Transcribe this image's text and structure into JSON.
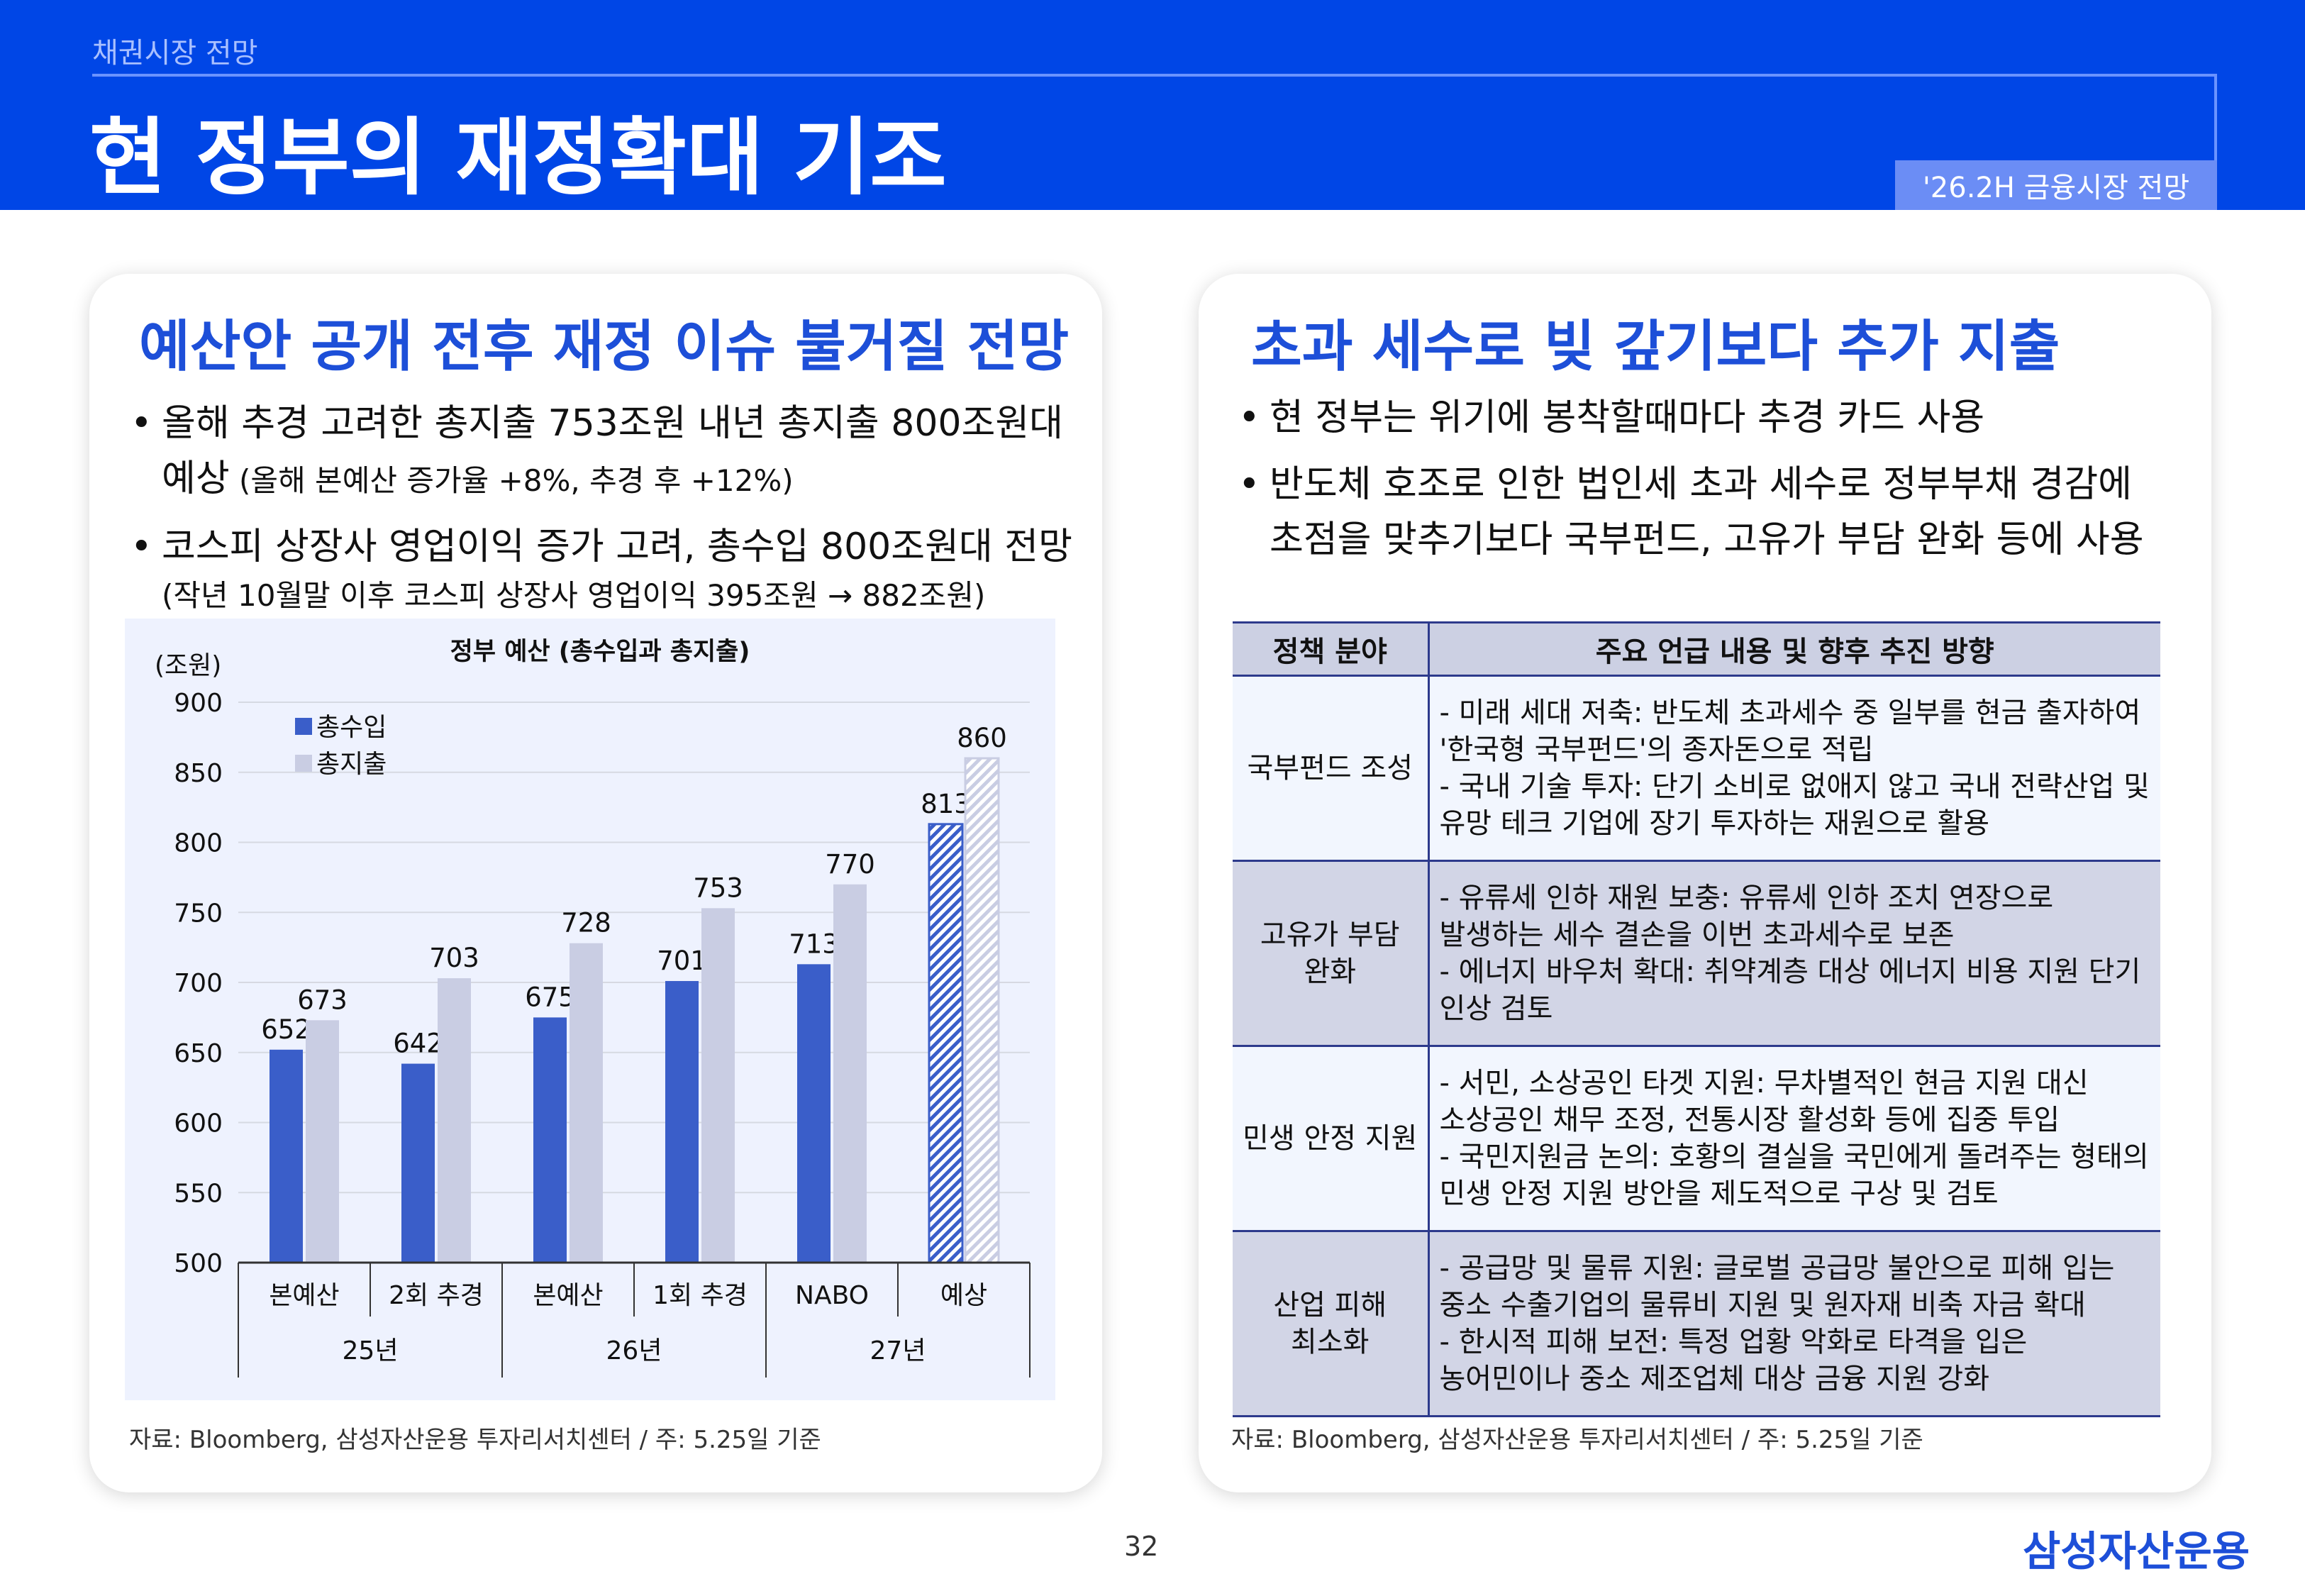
{
  "header": {
    "breadcrumb": "채권시장 전망",
    "title": "현 정부의 재정확대 기조",
    "badge": "'26.2H 금융시장 전망"
  },
  "left_panel": {
    "title": "예산안 공개 전후 재정 이슈 불거질 전망",
    "bullets": [
      {
        "main": "올해 추경 고려한 총지출 753조원 내년 총지출 800조원대",
        "cont": "예상",
        "sub": " (올해 본예산 증가율 +8%, 추경 후 +12%)"
      },
      {
        "main": "코스피 상장사 영업이익 증가 고려, 총수입 800조원대 전망",
        "sub": "(작년 10월말 이후 코스피 상장사 영업이익 395조원 → 882조원)"
      }
    ],
    "source": "자료: Bloomberg, 삼성자산운용 투자리서치센터 / 주: 5.25일 기준"
  },
  "right_panel": {
    "title": "초과 세수로 빚 갚기보다 추가 지출",
    "bullets": [
      {
        "line1": "현 정부는 위기에 봉착할때마다 추경 카드 사용"
      },
      {
        "line1": "반도체 호조로 인한 법인세 초과 세수로 정부부채 경감에",
        "line2": "초점을 맞추기보다 국부펀드, 고유가 부담 완화 등에 사용"
      }
    ],
    "table": {
      "headers": [
        "정책 분야",
        "주요 언급 내용 및 향후 추진 방향"
      ],
      "rows": [
        {
          "category": [
            "국부펀드 조성"
          ],
          "lines": [
            "- 미래 세대 저축: 반도체 초과세수 중 일부를 현금 출자하여",
            "'한국형 국부펀드'의 종자돈으로 적립",
            "- 국내 기술 투자: 단기 소비로 없애지 않고 국내 전략산업 및",
            "유망 테크 기업에 장기 투자하는 재원으로 활용"
          ]
        },
        {
          "category": [
            "고유가 부담",
            "완화"
          ],
          "lines": [
            "- 유류세 인하 재원 보충: 유류세 인하 조치 연장으로",
            "발생하는 세수 결손을 이번 초과세수로 보존",
            "- 에너지 바우처 확대: 취약계층 대상 에너지 비용 지원 단기",
            "인상 검토"
          ]
        },
        {
          "category": [
            "민생 안정 지원"
          ],
          "lines": [
            "- 서민, 소상공인 타겟 지원: 무차별적인 현금 지원 대신",
            "소상공인 채무 조정, 전통시장 활성화 등에 집중 투입",
            "- 국민지원금 논의: 호황의 결실을 국민에게 돌려주는 형태의",
            "민생 안정 지원 방안을 제도적으로 구상 및 검토"
          ]
        },
        {
          "category": [
            "산업 피해",
            "최소화"
          ],
          "lines": [
            "- 공급망 및 물류 지원: 글로벌 공급망 불안으로 피해 입는",
            "중소 수출기업의 물류비 지원 및 원자재 비축 자금 확대",
            "- 한시적 피해 보전: 특정 업황 악화로 타격을 입은",
            "농어민이나 중소 제조업체 대상 금융 지원 강화"
          ]
        }
      ]
    },
    "source": "자료: Bloomberg, 삼성자산운용 투자리서치센터 / 주: 5.25일 기준"
  },
  "chart_data": {
    "type": "bar",
    "title": "정부 예산 (총수입과 총지출)",
    "ylabel": "(조원)",
    "ylim": [
      500,
      900
    ],
    "yticks": [
      500,
      550,
      600,
      650,
      700,
      750,
      800,
      850,
      900
    ],
    "categories": [
      "본예산",
      "2회 추경",
      "본예산",
      "1회 추경",
      "NABO",
      "예상"
    ],
    "groups": [
      {
        "label": "25년",
        "span": 2
      },
      {
        "label": "26년",
        "span": 2
      },
      {
        "label": "27년",
        "span": 2
      }
    ],
    "series": [
      {
        "name": "총수입",
        "color": "#3a5ec9",
        "values": [
          652,
          642,
          675,
          701,
          713,
          813
        ]
      },
      {
        "name": "총지출",
        "color": "#c9cde3",
        "values": [
          673,
          703,
          728,
          753,
          770,
          860
        ]
      }
    ],
    "hatched_last_category": true,
    "legend_position": "top-left",
    "grid": true
  },
  "footer": {
    "page_number": "32",
    "logo": "삼성자산운용"
  }
}
